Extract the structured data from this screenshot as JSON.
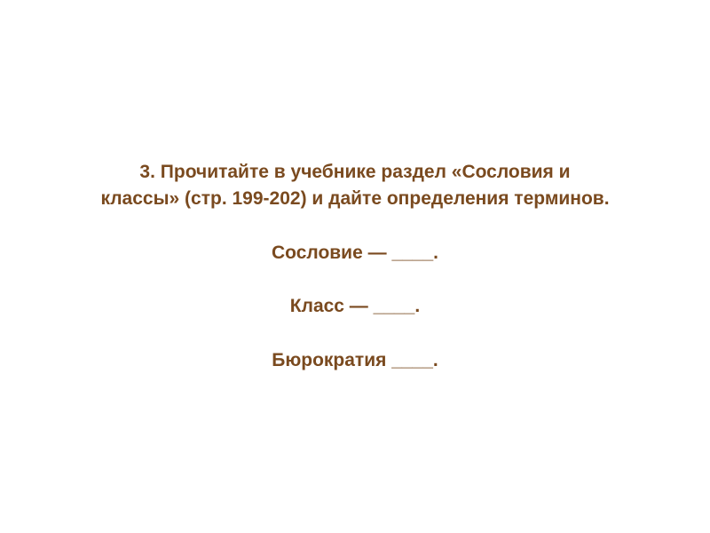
{
  "slide": {
    "instruction_line1": "3. Прочитайте в учебнике раздел «Сословия и",
    "instruction_line2": "классы» (стр. 199-202) и дайте определения терминов.",
    "term1": "Сословие — ____.",
    "term2": "Класс — ____.",
    "term3": "Бюрократия ____."
  },
  "style": {
    "text_color": "#7a4a1f",
    "background_color": "#ffffff",
    "font_size": 21,
    "font_weight": "bold",
    "font_family": "Arial"
  }
}
